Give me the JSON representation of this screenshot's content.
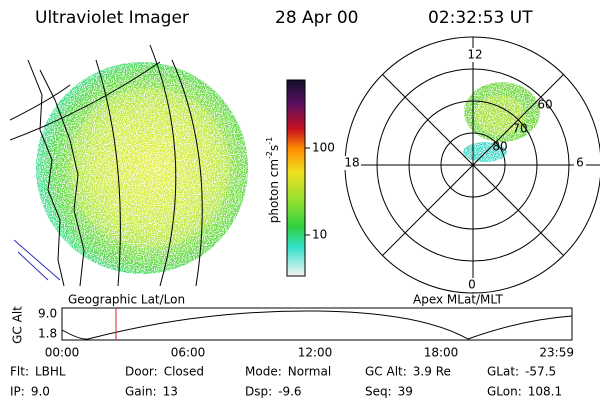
{
  "header": {
    "instrument": "Ultraviolet Imager",
    "date": "28 Apr 00",
    "time": "02:32:53 UT"
  },
  "colorbar": {
    "label_parts": [
      "photon cm",
      "-2",
      "s",
      "-1"
    ],
    "ticks": [
      "100",
      "10"
    ]
  },
  "polar": {
    "mlt_labels": [
      "12",
      "18",
      "6",
      "0"
    ],
    "lat_labels": [
      "60",
      "70",
      "80"
    ]
  },
  "panel_labels": {
    "left": "Geographic Lat/Lon",
    "right": "Apex MLat/MLT"
  },
  "orbit_strip": {
    "axis_label": "GC Alt",
    "yticks": [
      "9.0",
      "1.8"
    ],
    "xticks": [
      "00:00",
      "06:00",
      "12:00",
      "18:00",
      "23:59"
    ]
  },
  "info": [
    [
      {
        "label": "Flt:",
        "value": "LBHL"
      },
      {
        "label": "Door:",
        "value": "Closed"
      },
      {
        "label": "Mode:",
        "value": "Normal"
      },
      {
        "label": "GC Alt:",
        "value": "3.9 Re"
      },
      {
        "label": "GLat:",
        "value": "-57.5"
      }
    ],
    [
      {
        "label": "IP:",
        "value": "9.0"
      },
      {
        "label": "Gain:",
        "value": "13"
      },
      {
        "label": "Dsp:",
        "value": "-9.6"
      },
      {
        "label": "Seq:",
        "value": "39"
      },
      {
        "label": "GLon:",
        "value": "108.1"
      }
    ]
  ]
}
